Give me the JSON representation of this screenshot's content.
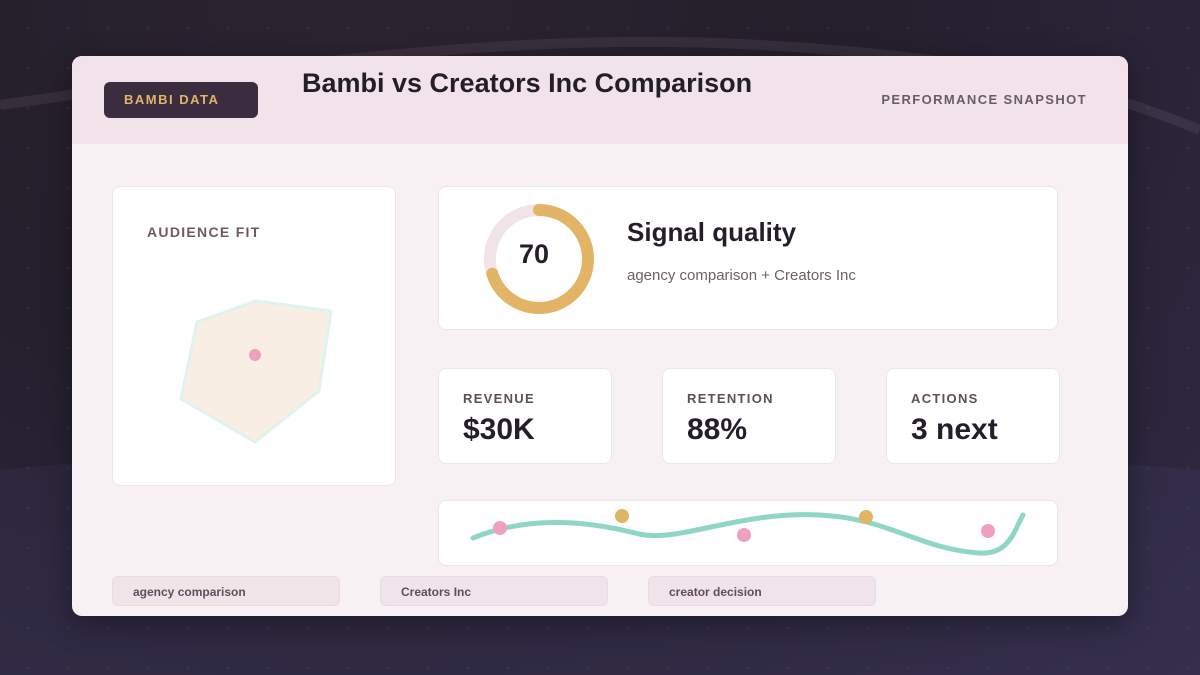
{
  "header": {
    "brand": "BAMBI DATA",
    "title": "Bambi vs Creators Inc Comparison",
    "snapshot": "PERFORMANCE SNAPSHOT"
  },
  "audience": {
    "label": "AUDIENCE FIT",
    "fill_color": "#f9eee4",
    "stroke_color": "#dff3ee",
    "dot_color": "#f0a0bf"
  },
  "signal": {
    "score": "70",
    "score_fraction": 0.7,
    "title": "Signal quality",
    "subtitle": "agency comparison + Creators Inc",
    "arc_color": "#e2b566",
    "track_color": "#f1e3e9"
  },
  "metrics": [
    {
      "label": "REVENUE",
      "value": "$30K"
    },
    {
      "label": "RETENTION",
      "value": "88%"
    },
    {
      "label": "ACTIONS",
      "value": "3 next"
    }
  ],
  "trend": {
    "line_color": "#8fd6c4",
    "dot_colors": [
      "#f0a0bf",
      "#e2b566",
      "#f0a0bf",
      "#e2b566",
      "#f0a0bf"
    ]
  },
  "tags": [
    "agency comparison",
    "Creators Inc",
    "creator decision"
  ]
}
